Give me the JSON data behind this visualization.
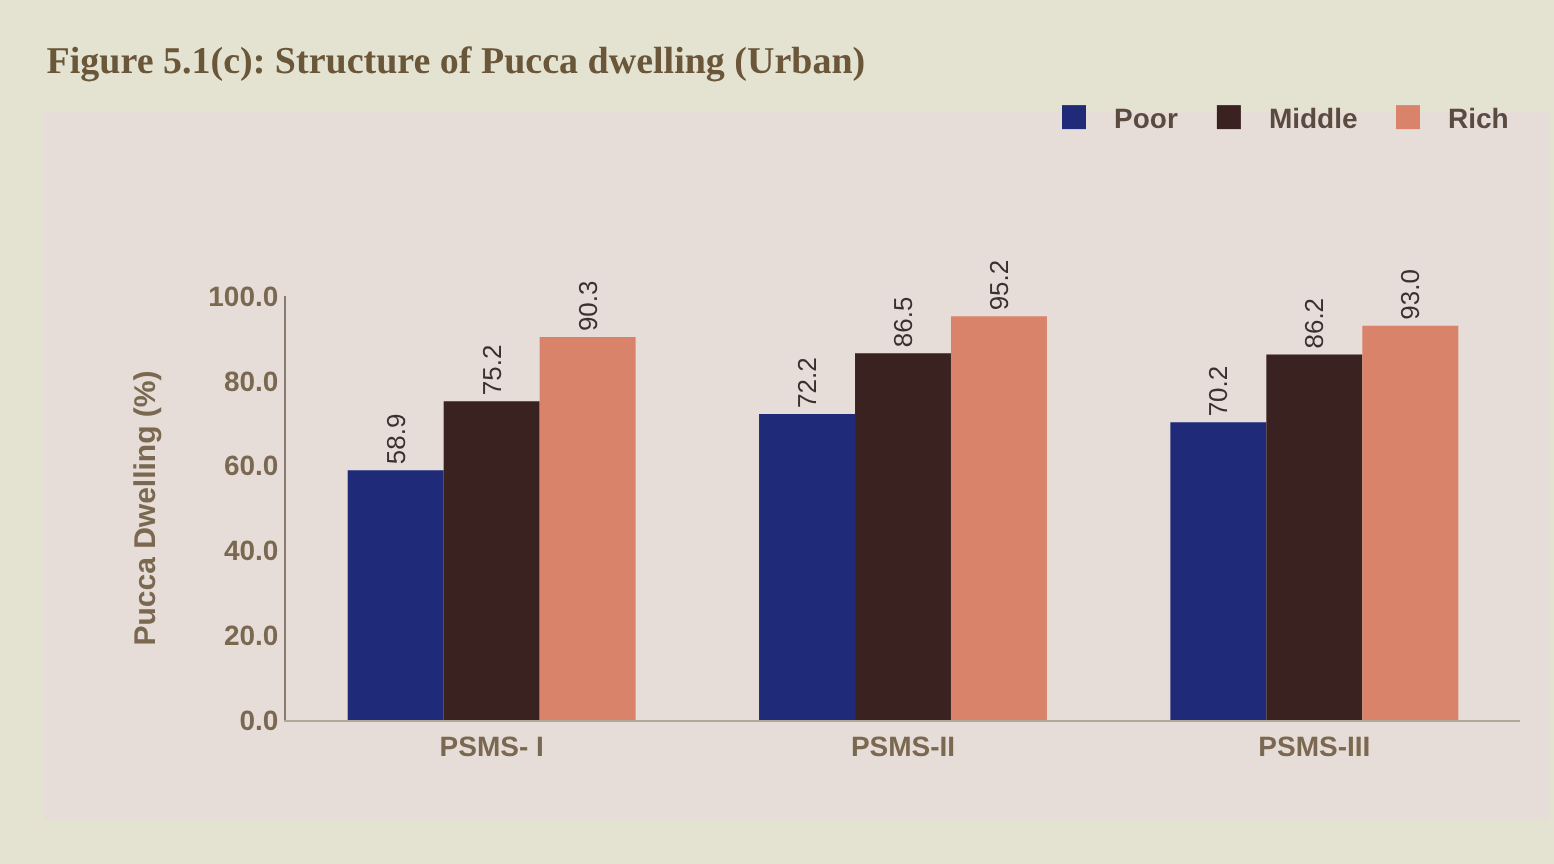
{
  "chart_data": {
    "type": "bar",
    "title": "Figure 5.1(c): Structure of Pucca dwelling (Urban)",
    "ylabel": "Pucca Dwelling (%)",
    "categories": [
      "PSMS- I",
      "PSMS-II",
      "PSMS-III"
    ],
    "series": [
      {
        "name": "Poor",
        "color": "#1f2a78",
        "values": [
          58.9,
          72.2,
          70.2
        ],
        "value_labels": [
          "58.9",
          "72.2",
          "70.2"
        ]
      },
      {
        "name": "Middle",
        "color": "#3a2220",
        "values": [
          75.2,
          86.5,
          86.2
        ],
        "value_labels": [
          "75.2",
          "86.5",
          "86.2"
        ]
      },
      {
        "name": "Rich",
        "color": "#d9846a",
        "values": [
          90.3,
          95.2,
          93.0
        ],
        "value_labels": [
          "90.3",
          "95.2",
          "93.0"
        ]
      }
    ],
    "ylim": [
      0,
      100
    ],
    "yticks": [
      {
        "value": 0,
        "label": "0.0"
      },
      {
        "value": 20,
        "label": "20.0"
      },
      {
        "value": 40,
        "label": "40.0"
      },
      {
        "value": 60,
        "label": "60.0"
      },
      {
        "value": 80,
        "label": "80.0"
      },
      {
        "value": 100,
        "label": "100.0"
      }
    ],
    "legend": "top right"
  }
}
